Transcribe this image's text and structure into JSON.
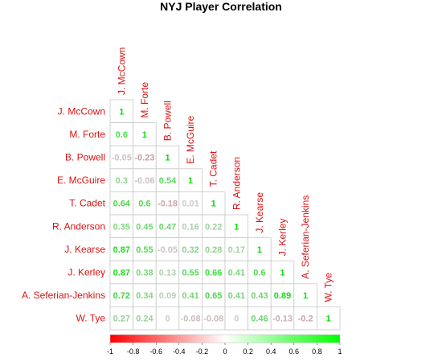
{
  "chart_data": {
    "type": "heatmap",
    "title": "NYJ Player Correlation",
    "xlabel": "",
    "ylabel": "",
    "players": [
      "J. McCown",
      "M. Forte",
      "B. Powell",
      "E. McGuire",
      "T. Cadet",
      "R. Anderson",
      "J. Kearse",
      "J. Kerley",
      "A. Seferian-Jenkins",
      "W. Tye"
    ],
    "matrix": [
      [
        1
      ],
      [
        0.6,
        1
      ],
      [
        -0.05,
        -0.23,
        1
      ],
      [
        0.3,
        -0.06,
        0.54,
        1
      ],
      [
        0.64,
        0.6,
        -0.18,
        0.01,
        1
      ],
      [
        0.35,
        0.45,
        0.47,
        0.16,
        0.22,
        1
      ],
      [
        0.87,
        0.55,
        -0.05,
        0.32,
        0.28,
        0.17,
        1
      ],
      [
        0.87,
        0.38,
        0.13,
        0.55,
        0.66,
        0.41,
        0.6,
        1
      ],
      [
        0.72,
        0.34,
        0.09,
        0.41,
        0.65,
        0.41,
        0.43,
        0.89,
        1
      ],
      [
        0.27,
        0.24,
        0,
        -0.08,
        -0.08,
        0,
        0.46,
        -0.13,
        -0.2,
        1
      ]
    ],
    "color_scale": {
      "range": [
        -1,
        1
      ],
      "low_color": "#ff0000",
      "mid_color": "#ffffff",
      "high_color": "#00ff00",
      "ticks": [
        -1,
        -0.8,
        -0.6,
        -0.4,
        -0.2,
        0,
        0.2,
        0.4,
        0.6,
        0.8,
        1
      ]
    },
    "label_color": "#dd1111",
    "colorbar_placement": "bottom"
  }
}
